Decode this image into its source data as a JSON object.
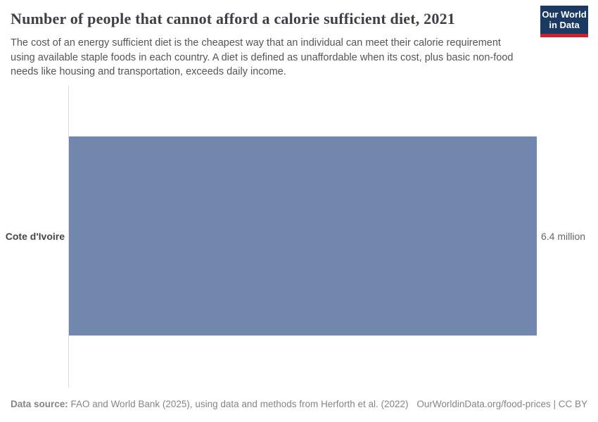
{
  "header": {
    "title": "Number of people that cannot afford a calorie sufficient diet, 2021",
    "subtitle": "The cost of an energy sufficient diet is the cheapest way that an individual can meet their calorie requirement using available staple foods in each country. A diet is defined as unaffordable when its cost, plus basic non-food needs like housing and transportation, exceeds daily income."
  },
  "logo": {
    "line1": "Our World",
    "line2": "in Data",
    "bg_color": "#1b3a63",
    "accent_color": "#d0202e"
  },
  "chart_data": {
    "type": "bar",
    "orientation": "horizontal",
    "title": "Number of people that cannot afford a calorie sufficient diet, 2021",
    "categories": [
      "Cote d'Ivoire"
    ],
    "values": [
      6400000
    ],
    "value_labels": [
      "6.4 million"
    ],
    "xlim": [
      0,
      6400000
    ],
    "grid": false,
    "legend": "none",
    "bar_color": "#7187ad",
    "axis_color": "#dddddd"
  },
  "footer": {
    "datasource_label": "Data source:",
    "datasource_text": " FAO and World Bank (2025), using data and methods from Herforth et al. (2022)",
    "attribution": "OurWorldinData.org/food-prices | CC BY"
  }
}
